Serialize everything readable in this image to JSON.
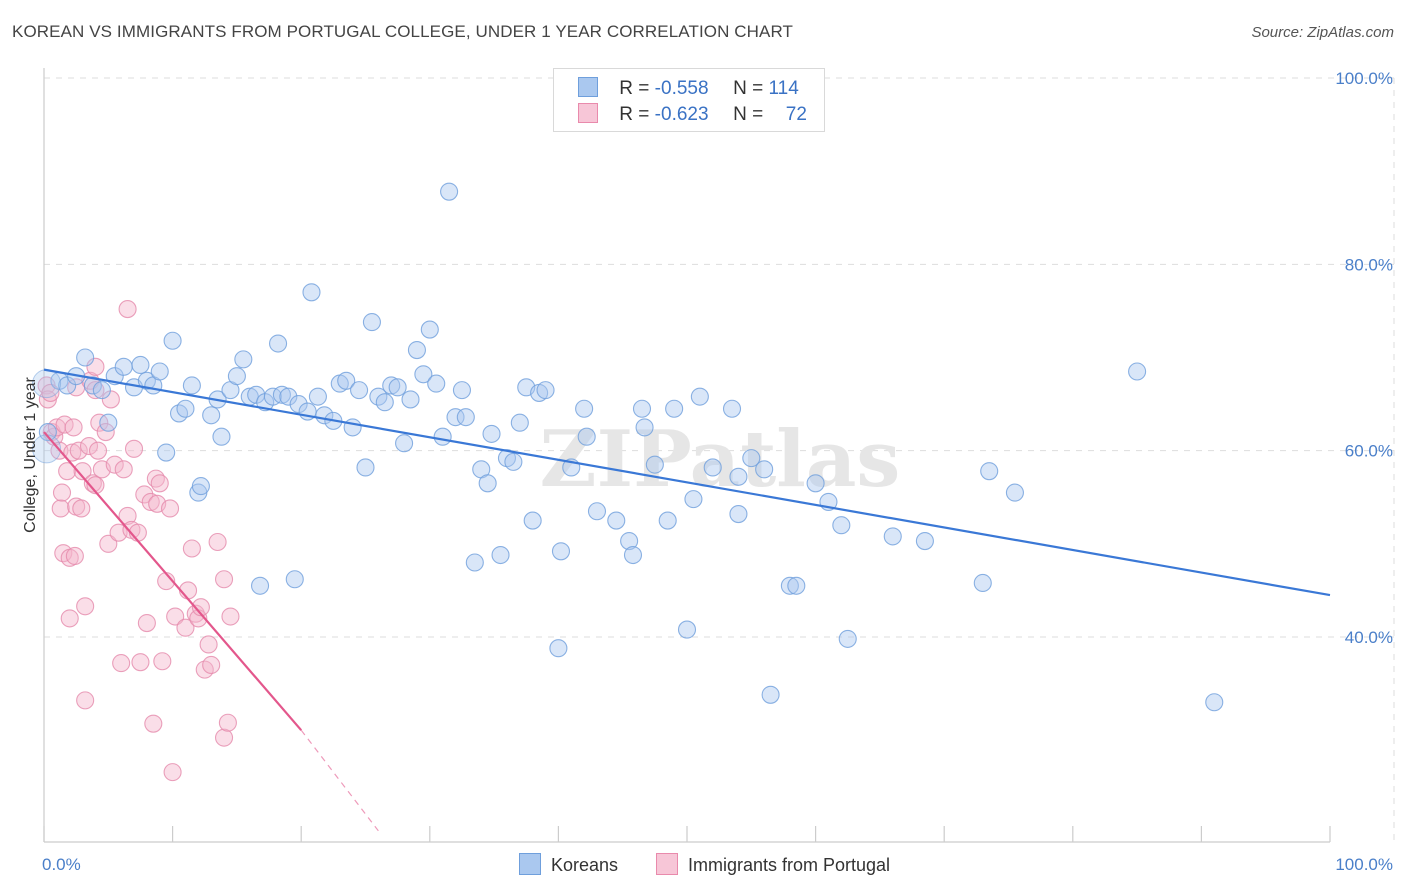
{
  "title": "KOREAN VS IMMIGRANTS FROM PORTUGAL COLLEGE, UNDER 1 YEAR CORRELATION CHART",
  "source": "Source: ZipAtlas.com",
  "watermark": "ZIPatlas",
  "colors": {
    "blue": "#3a78d6",
    "blue_fill": "#aac8ef",
    "pink": "#e3578c",
    "pink_fill": "#f4b6cb",
    "grid": "#dddddd",
    "tick_text": "#4a7fc9"
  },
  "legend": {
    "rows": [
      {
        "r_label": "R =",
        "r_value": "-0.558",
        "n_label": "N =",
        "n_value": "114"
      },
      {
        "r_label": "R =",
        "r_value": "-0.623",
        "n_label": "N =",
        "n_value": "72"
      }
    ]
  },
  "bottom_legend": {
    "series1": "Koreans",
    "series2": "Immigrants from Portugal"
  },
  "chart_data": {
    "type": "scatter",
    "title": "KOREAN VS IMMIGRANTS FROM PORTUGAL COLLEGE, UNDER 1 YEAR CORRELATION CHART",
    "xlabel": "",
    "ylabel": "College, Under 1 year",
    "xlim": [
      0,
      100
    ],
    "ylim": [
      18,
      100
    ],
    "x_tick_labels": [
      "0.0%",
      "100.0%"
    ],
    "y_ticks": [
      40,
      60,
      80,
      100
    ],
    "y_tick_labels": [
      "40.0%",
      "60.0%",
      "80.0%",
      "100.0%"
    ],
    "grid": true,
    "series": [
      {
        "name": "Koreans",
        "R": -0.558,
        "N": 114,
        "trend": {
          "x": [
            0,
            100
          ],
          "y": [
            68.7,
            44.5
          ]
        },
        "points": [
          [
            0.3,
            62
          ],
          [
            1.2,
            67.5
          ],
          [
            1.8,
            67
          ],
          [
            2.5,
            68
          ],
          [
            3.2,
            70
          ],
          [
            3.8,
            67
          ],
          [
            4.5,
            66.5
          ],
          [
            5,
            63
          ],
          [
            5.5,
            68
          ],
          [
            6.2,
            69
          ],
          [
            7,
            66.8
          ],
          [
            7.5,
            69.2
          ],
          [
            8,
            67.5
          ],
          [
            8.5,
            67
          ],
          [
            9,
            68.5
          ],
          [
            9.5,
            59.8
          ],
          [
            10,
            71.8
          ],
          [
            10.5,
            64
          ],
          [
            11,
            64.5
          ],
          [
            11.5,
            67
          ],
          [
            12,
            55.5
          ],
          [
            12.2,
            56.2
          ],
          [
            13,
            63.8
          ],
          [
            13.5,
            65.5
          ],
          [
            13.8,
            61.5
          ],
          [
            14.5,
            66.5
          ],
          [
            15,
            68
          ],
          [
            15.5,
            69.8
          ],
          [
            16,
            65.8
          ],
          [
            16.5,
            66
          ],
          [
            16.8,
            45.5
          ],
          [
            17.2,
            65.2
          ],
          [
            17.8,
            65.8
          ],
          [
            18.2,
            71.5
          ],
          [
            18.5,
            66
          ],
          [
            19,
            65.8
          ],
          [
            19.5,
            46.2
          ],
          [
            19.8,
            65
          ],
          [
            20.5,
            64.2
          ],
          [
            20.8,
            77
          ],
          [
            21.3,
            65.8
          ],
          [
            21.8,
            63.8
          ],
          [
            22.5,
            63.2
          ],
          [
            23,
            67.2
          ],
          [
            23.5,
            67.5
          ],
          [
            24,
            62.5
          ],
          [
            24.5,
            66.5
          ],
          [
            25,
            58.2
          ],
          [
            25.5,
            73.8
          ],
          [
            26,
            65.8
          ],
          [
            26.5,
            65.2
          ],
          [
            27,
            67
          ],
          [
            27.5,
            66.8
          ],
          [
            28,
            60.8
          ],
          [
            28.5,
            65.5
          ],
          [
            29,
            70.8
          ],
          [
            29.5,
            68.2
          ],
          [
            30,
            73
          ],
          [
            30.5,
            67.2
          ],
          [
            31,
            61.5
          ],
          [
            31.5,
            87.8
          ],
          [
            32,
            63.6
          ],
          [
            32.5,
            66.5
          ],
          [
            32.8,
            63.6
          ],
          [
            33.5,
            48
          ],
          [
            34,
            58
          ],
          [
            34.5,
            56.5
          ],
          [
            34.8,
            61.8
          ],
          [
            35.5,
            48.8
          ],
          [
            36,
            59.2
          ],
          [
            36.5,
            58.8
          ],
          [
            37,
            63
          ],
          [
            37.5,
            66.8
          ],
          [
            38,
            52.5
          ],
          [
            38.5,
            66.2
          ],
          [
            39,
            66.5
          ],
          [
            40,
            38.8
          ],
          [
            40.2,
            49.2
          ],
          [
            41,
            58.2
          ],
          [
            42,
            64.5
          ],
          [
            42.2,
            61.5
          ],
          [
            43,
            53.5
          ],
          [
            44.5,
            52.5
          ],
          [
            45.5,
            50.3
          ],
          [
            45.8,
            48.8
          ],
          [
            46.5,
            64.5
          ],
          [
            46.7,
            62.5
          ],
          [
            47.5,
            58.5
          ],
          [
            48.5,
            52.5
          ],
          [
            49,
            64.5
          ],
          [
            50,
            40.8
          ],
          [
            50.5,
            54.8
          ],
          [
            51,
            65.8
          ],
          [
            52,
            58.2
          ],
          [
            53.5,
            64.5
          ],
          [
            54,
            57.2
          ],
          [
            54,
            53.2
          ],
          [
            55,
            59.2
          ],
          [
            56,
            58
          ],
          [
            56.5,
            33.8
          ],
          [
            58,
            45.5
          ],
          [
            58.5,
            45.5
          ],
          [
            60,
            56.5
          ],
          [
            61,
            54.5
          ],
          [
            62,
            52
          ],
          [
            62.5,
            39.8
          ],
          [
            66,
            50.8
          ],
          [
            68.5,
            50.3
          ],
          [
            73,
            45.8
          ],
          [
            73.5,
            57.8
          ],
          [
            75.5,
            55.5
          ],
          [
            85,
            68.5
          ],
          [
            91,
            33
          ]
        ]
      },
      {
        "name": "Immigrants from Portugal",
        "R": -0.623,
        "N": 72,
        "trend": {
          "x": [
            0,
            20
          ],
          "y": [
            62,
            30
          ]
        },
        "trend_dashed": {
          "x": [
            20,
            26
          ],
          "y": [
            30,
            19.2
          ]
        },
        "points": [
          [
            0.2,
            67
          ],
          [
            0.3,
            65.5
          ],
          [
            0.5,
            66.2
          ],
          [
            0.6,
            62
          ],
          [
            0.8,
            61.5
          ],
          [
            1,
            62.5
          ],
          [
            1.2,
            60
          ],
          [
            1.3,
            53.8
          ],
          [
            1.4,
            55.5
          ],
          [
            1.5,
            49
          ],
          [
            1.6,
            62.8
          ],
          [
            1.8,
            57.8
          ],
          [
            2,
            42
          ],
          [
            2,
            48.5
          ],
          [
            2.2,
            59.8
          ],
          [
            2.3,
            62.5
          ],
          [
            2.4,
            48.7
          ],
          [
            2.5,
            54
          ],
          [
            2.5,
            66.8
          ],
          [
            2.7,
            60
          ],
          [
            2.9,
            53.8
          ],
          [
            3,
            57.8
          ],
          [
            3.2,
            43.3
          ],
          [
            3.2,
            33.2
          ],
          [
            3.5,
            60.5
          ],
          [
            3.6,
            67.5
          ],
          [
            3.8,
            56.5
          ],
          [
            4,
            69
          ],
          [
            4,
            56.3
          ],
          [
            4,
            66.5
          ],
          [
            4.2,
            60
          ],
          [
            4.3,
            63
          ],
          [
            4.5,
            58
          ],
          [
            4.8,
            62
          ],
          [
            5,
            50
          ],
          [
            5.2,
            65.5
          ],
          [
            5.5,
            58.5
          ],
          [
            5.8,
            51.2
          ],
          [
            6,
            37.2
          ],
          [
            6.2,
            58
          ],
          [
            6.5,
            75.2
          ],
          [
            6.5,
            53
          ],
          [
            6.8,
            51.5
          ],
          [
            7,
            60.2
          ],
          [
            7.3,
            51.2
          ],
          [
            7.5,
            37.3
          ],
          [
            7.8,
            55.3
          ],
          [
            8,
            41.5
          ],
          [
            8.3,
            54.5
          ],
          [
            8.5,
            30.7
          ],
          [
            8.7,
            57
          ],
          [
            8.8,
            54.3
          ],
          [
            9,
            56.5
          ],
          [
            9.2,
            37.4
          ],
          [
            9.5,
            46
          ],
          [
            9.8,
            53.8
          ],
          [
            10,
            25.5
          ],
          [
            10.2,
            42.2
          ],
          [
            11,
            41
          ],
          [
            11.2,
            45
          ],
          [
            11.5,
            49.5
          ],
          [
            11.8,
            42.5
          ],
          [
            12,
            42
          ],
          [
            12.2,
            43.2
          ],
          [
            12.5,
            36.5
          ],
          [
            12.8,
            39.2
          ],
          [
            13,
            37
          ],
          [
            13.5,
            50.2
          ],
          [
            14,
            46.2
          ],
          [
            14,
            29.2
          ],
          [
            14.3,
            30.8
          ],
          [
            14.5,
            42.2
          ]
        ]
      }
    ]
  }
}
